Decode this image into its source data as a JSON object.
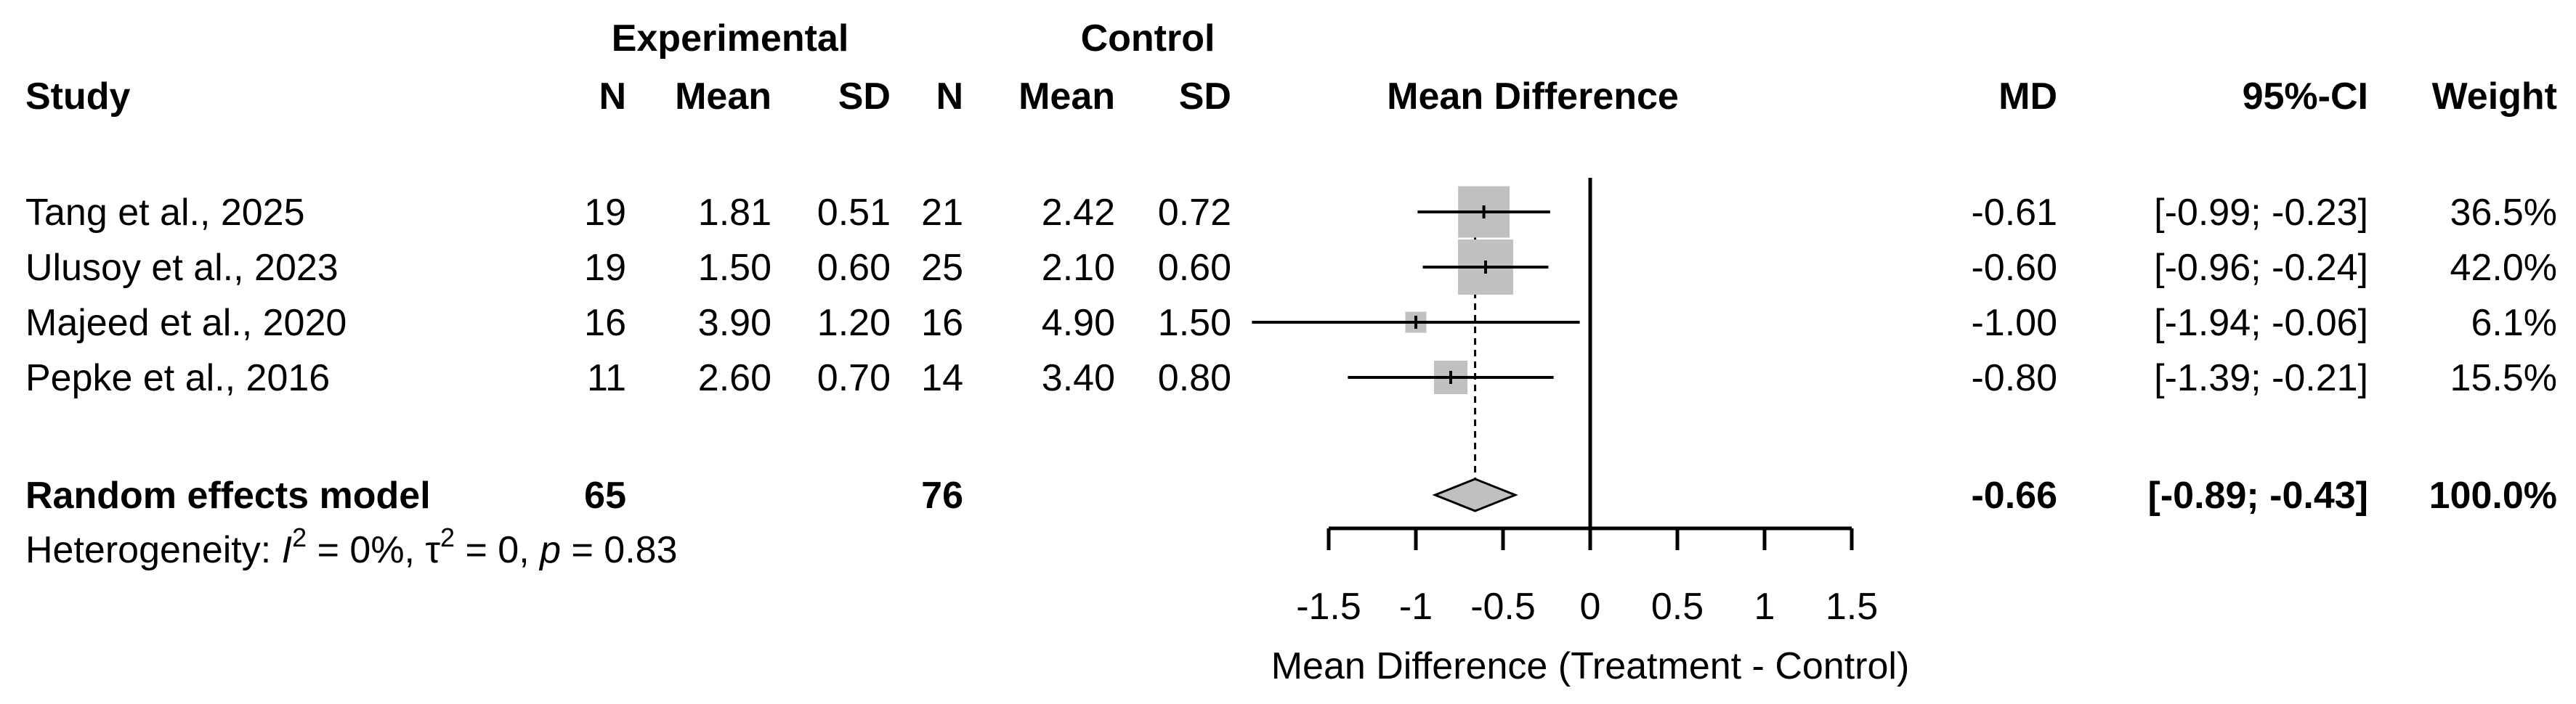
{
  "chart_data": {
    "type": "forest",
    "header": {
      "study": "Study",
      "experimental": "Experimental",
      "control": "Control",
      "n": "N",
      "mean": "Mean",
      "sd": "SD",
      "plot_title": "Mean Difference",
      "md": "MD",
      "ci": "95%-CI",
      "weight": "Weight"
    },
    "studies": [
      {
        "name": "Tang et al., 2025",
        "e_n": "19",
        "e_mean": "1.81",
        "e_sd": "0.51",
        "c_n": "21",
        "c_mean": "2.42",
        "c_sd": "0.72",
        "md": -0.61,
        "lower": -0.99,
        "upper": -0.23,
        "weight": 36.5,
        "md_text": "-0.61",
        "ci_text": "[-0.99; -0.23]",
        "weight_text": "36.5%"
      },
      {
        "name": "Ulusoy et al., 2023",
        "e_n": "19",
        "e_mean": "1.50",
        "e_sd": "0.60",
        "c_n": "25",
        "c_mean": "2.10",
        "c_sd": "0.60",
        "md": -0.6,
        "lower": -0.96,
        "upper": -0.24,
        "weight": 42.0,
        "md_text": "-0.60",
        "ci_text": "[-0.96; -0.24]",
        "weight_text": "42.0%"
      },
      {
        "name": "Majeed et al., 2020",
        "e_n": "16",
        "e_mean": "3.90",
        "e_sd": "1.20",
        "c_n": "16",
        "c_mean": "4.90",
        "c_sd": "1.50",
        "md": -1.0,
        "lower": -1.94,
        "upper": -0.06,
        "weight": 6.1,
        "md_text": "-1.00",
        "ci_text": "[-1.94; -0.06]",
        "weight_text": "6.1%"
      },
      {
        "name": "Pepke et al., 2016",
        "e_n": "11",
        "e_mean": "2.60",
        "e_sd": "0.70",
        "c_n": "14",
        "c_mean": "3.40",
        "c_sd": "0.80",
        "md": -0.8,
        "lower": -1.39,
        "upper": -0.21,
        "weight": 15.5,
        "md_text": "-0.80",
        "ci_text": "[-1.39; -0.21]",
        "weight_text": "15.5%"
      }
    ],
    "summary": {
      "name": "Random effects model",
      "e_n": "65",
      "c_n": "76",
      "md": -0.66,
      "lower": -0.89,
      "upper": -0.43,
      "md_text": "-0.66",
      "ci_text": "[-0.89; -0.43]",
      "weight_text": "100.0%"
    },
    "heterogeneity": {
      "prefix": "Heterogeneity: ",
      "i_symbol": "I",
      "sup_2": "2",
      "i2_value": " = 0%, ",
      "tau_symbol": "τ",
      "tau_value": " = 0, ",
      "p_symbol": "p",
      "p_value": " = 0.83"
    },
    "xaxis": {
      "label": "Mean Difference (Treatment - Control)",
      "range": [
        -1.5,
        1.5
      ],
      "ticks": [
        -1.5,
        -1,
        -0.5,
        0,
        0.5,
        1,
        1.5
      ],
      "tick_labels": [
        "-1.5",
        "-1",
        "-0.5",
        "0",
        "0.5",
        "1",
        "1.5"
      ]
    },
    "colors": {
      "line": "#000000",
      "box": "#c0c0c0",
      "diamond": "#c0c0c0"
    }
  }
}
